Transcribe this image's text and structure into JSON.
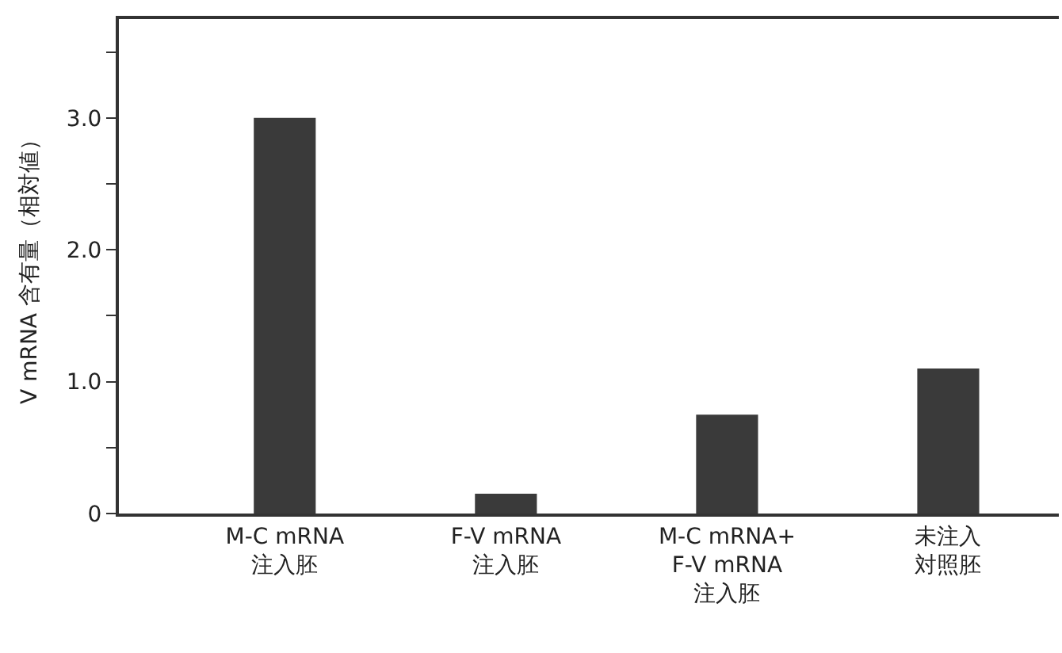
{
  "chart_data": {
    "type": "bar",
    "ylabel": "V mRNA 含有量（相対値）",
    "categories": [
      "M-C mRNA\n注入胚",
      "F-V mRNA\n注入胚",
      "M-C mRNA+\nF-V mRNA\n注入胚",
      "未注入対照胚"
    ],
    "values": [
      3.0,
      0.15,
      0.75,
      1.1
    ],
    "color": "#3a3a3a",
    "ylim": [
      0,
      3.75
    ],
    "yticks": [
      0,
      {
        "value": 0.5,
        "label": null
      },
      {
        "value": 1.0,
        "label": "1.0"
      },
      {
        "value": 1.5,
        "label": null
      },
      {
        "value": 2.0,
        "label": "2.0"
      },
      {
        "value": 2.5,
        "label": null
      },
      {
        "value": 3.0,
        "label": "3.0"
      },
      {
        "value": 3.5,
        "label": null
      }
    ]
  }
}
